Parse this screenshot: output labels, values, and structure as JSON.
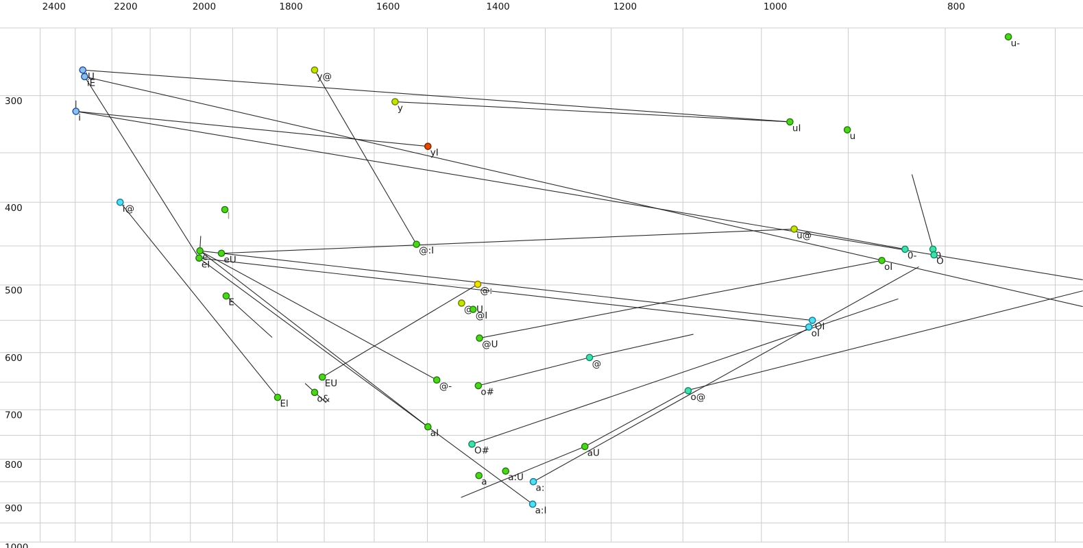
{
  "colors": {
    "background": "#ffffff",
    "grid": "#cccccc",
    "trajectory_line": "#141414",
    "tick_text": "#111111",
    "point_label_text": "#1a1a1a",
    "muted_label_text": "#9a9a9a"
  },
  "chart_data": {
    "type": "scatter",
    "title": "",
    "xlabel": "",
    "ylabel": "",
    "description": "Vowel formant plot: F2 (Hz) decreasing left-to-right on top axis, F1 (Hz) increasing top-to-bottom on left axis, both log-scaled; labelled vowel tokens with straight diphthong trajectory lines.",
    "x_axis": {
      "unit": "Hz",
      "ticks": [
        2400,
        2200,
        2000,
        1800,
        1600,
        1400,
        1200,
        1000,
        800
      ],
      "scale": "log",
      "direction": "values decrease to the right",
      "gridline_step_hz": 100,
      "gridline_max": 2400,
      "gridline_min": 700
    },
    "y_axis": {
      "unit": "Hz",
      "ticks": [
        300,
        400,
        500,
        600,
        700,
        800,
        900,
        1000
      ],
      "scale": "log",
      "direction": "values increase downward",
      "gridline_step_hz": 50,
      "gridline_max": 1000,
      "gridline_min": 250
    },
    "legend": "none",
    "grid": "on",
    "palette": {
      "blue": {
        "fill": "#90c0ea",
        "stroke": "#1f4e9c"
      },
      "cyan": {
        "fill": "#58dcf0",
        "stroke": "#0b7f96"
      },
      "teal": {
        "fill": "#45dcae",
        "stroke": "#0b8a62"
      },
      "green": {
        "fill": "#4ed41c",
        "stroke": "#1e7a0a"
      },
      "yellowgreen": {
        "fill": "#c3e400",
        "stroke": "#6e7a00"
      },
      "yellow": {
        "fill": "#ece400",
        "stroke": "#8a7a00"
      },
      "orange": {
        "fill": "#e24b00",
        "stroke": "#7a2000"
      }
    },
    "points": [
      {
        "label": "iU",
        "f2": 2279,
        "f1": 280,
        "color": "blue"
      },
      {
        "label": "iE",
        "f2": 2274,
        "f1": 285,
        "color": "blue"
      },
      {
        "label": "i",
        "f2": 2298,
        "f1": 313,
        "color": "blue"
      },
      {
        "label": "y@",
        "f2": 1720,
        "f1": 280,
        "color": "yellowgreen"
      },
      {
        "label": "y",
        "f2": 1560,
        "f1": 305,
        "color": "yellowgreen"
      },
      {
        "label": "yI",
        "f2": 1499,
        "f1": 344,
        "color": "orange"
      },
      {
        "label": "u-",
        "f2": 741,
        "f1": 256,
        "color": "green"
      },
      {
        "label": "uI",
        "f2": 966,
        "f1": 322,
        "color": "green"
      },
      {
        "label": "u",
        "f2": 901,
        "f1": 329,
        "color": "green"
      },
      {
        "label": "i@",
        "f2": 2178,
        "f1": 400,
        "color": "cyan"
      },
      {
        "label": "I",
        "f2": 1918,
        "f1": 408,
        "color": "green",
        "label_style": "muted"
      },
      {
        "label": "e",
        "f2": 1977,
        "f1": 456,
        "color": "green"
      },
      {
        "label": "eI",
        "f2": 1979,
        "f1": 465,
        "color": "green"
      },
      {
        "label": "eU",
        "f2": 1926,
        "f1": 459,
        "color": "green"
      },
      {
        "label": "@:I",
        "f2": 1520,
        "f1": 448,
        "color": "green"
      },
      {
        "label": "E",
        "f2": 1915,
        "f1": 515,
        "color": "green"
      },
      {
        "label": "@:",
        "f2": 1411,
        "f1": 499,
        "color": "yellow"
      },
      {
        "label": "@:U",
        "f2": 1439,
        "f1": 525,
        "color": "yellowgreen"
      },
      {
        "label": "@I",
        "f2": 1419,
        "f1": 534,
        "color": "green"
      },
      {
        "label": "@U",
        "f2": 1408,
        "f1": 577,
        "color": "green"
      },
      {
        "label": "u@",
        "f2": 961,
        "f1": 430,
        "color": "yellowgreen"
      },
      {
        "label": "oI",
        "f2": 864,
        "f1": 468,
        "color": "green"
      },
      {
        "label": "0-",
        "f2": 840,
        "f1": 454,
        "color": "teal"
      },
      {
        "label": "0",
        "f2": 812,
        "f1": 454,
        "color": "teal"
      },
      {
        "label": "O",
        "f2": 811,
        "f1": 461,
        "color": "teal"
      },
      {
        "label": "OI",
        "f2": 940,
        "f1": 550,
        "color": "cyan"
      },
      {
        "label": "oI",
        "f2": 944,
        "f1": 560,
        "color": "cyan"
      },
      {
        "label": "@",
        "f2": 1232,
        "f1": 608,
        "color": "teal"
      },
      {
        "label": "EU",
        "f2": 1704,
        "f1": 641,
        "color": "green"
      },
      {
        "label": "o&",
        "f2": 1720,
        "f1": 668,
        "color": "green"
      },
      {
        "label": "El",
        "f2": 1799,
        "f1": 677,
        "color": "green"
      },
      {
        "label": "@-",
        "f2": 1483,
        "f1": 646,
        "color": "green"
      },
      {
        "label": "o#",
        "f2": 1410,
        "f1": 656,
        "color": "green"
      },
      {
        "label": "o@",
        "f2": 1093,
        "f1": 665,
        "color": "teal"
      },
      {
        "label": "aI",
        "f2": 1499,
        "f1": 733,
        "color": "green"
      },
      {
        "label": "O#",
        "f2": 1421,
        "f1": 768,
        "color": "teal"
      },
      {
        "label": "aU",
        "f2": 1239,
        "f1": 773,
        "color": "green"
      },
      {
        "label": "a",
        "f2": 1409,
        "f1": 836,
        "color": "green"
      },
      {
        "label": "a:U",
        "f2": 1364,
        "f1": 826,
        "color": "green"
      },
      {
        "label": "a:",
        "f2": 1319,
        "f1": 850,
        "color": "cyan"
      },
      {
        "label": "a:I",
        "f2": 1320,
        "f1": 903,
        "color": "cyan"
      }
    ],
    "segments": [
      [
        2279,
        280,
        966,
        322
      ],
      [
        2298,
        313,
        1499,
        344
      ],
      [
        1720,
        280,
        1520,
        448
      ],
      [
        2274,
        285,
        1979,
        465
      ],
      [
        2298,
        304,
        2298,
        314
      ],
      [
        2178,
        400,
        1799,
        677
      ],
      [
        1977,
        456,
        940,
        550
      ],
      [
        1979,
        465,
        944,
        560
      ],
      [
        1926,
        459,
        961,
        430
      ],
      [
        961,
        430,
        840,
        454
      ],
      [
        2274,
        285,
        677,
        530
      ],
      [
        2298,
        313,
        677,
        493
      ],
      [
        1410,
        656,
        1232,
        608
      ],
      [
        1232,
        608,
        1086,
        571
      ],
      [
        1421,
        768,
        847,
        519
      ],
      [
        1977,
        456,
        1499,
        733
      ],
      [
        1979,
        465,
        1320,
        903
      ],
      [
        1977,
        456,
        1483,
        646
      ],
      [
        1704,
        641,
        1411,
        499
      ],
      [
        1440,
        887,
        1239,
        773
      ],
      [
        1239,
        773,
        1093,
        664
      ],
      [
        833,
        371,
        812,
        454
      ],
      [
        1915,
        515,
        1811,
        576
      ],
      [
        1740,
        652,
        1696,
        687
      ],
      [
        1093,
        664,
        677,
        508
      ],
      [
        1319,
        850,
        826,
        476
      ],
      [
        1560,
        305,
        966,
        322
      ],
      [
        1975,
        438,
        1977,
        455
      ],
      [
        1408,
        577,
        864,
        468
      ]
    ]
  }
}
